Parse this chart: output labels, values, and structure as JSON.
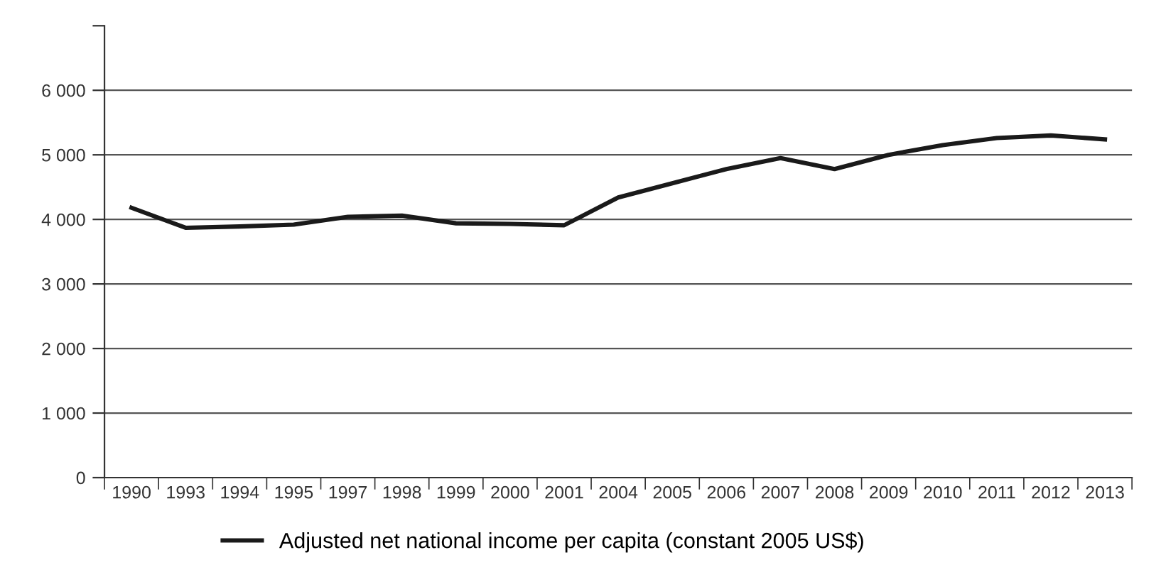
{
  "chart_data": {
    "type": "line",
    "categories": [
      "1990",
      "1993",
      "1994",
      "1995",
      "1997",
      "1998",
      "1999",
      "2000",
      "2001",
      "2004",
      "2005",
      "2006",
      "2007",
      "2008",
      "2009",
      "2010",
      "2011",
      "2012",
      "2013"
    ],
    "series": [
      {
        "name": "Adjusted net national income per capita (constant 2005 US$)",
        "color": "#1a1a1a",
        "values": [
          4180,
          3870,
          3890,
          3920,
          4040,
          4060,
          3940,
          3930,
          3910,
          4340,
          4560,
          4780,
          4950,
          4780,
          5000,
          5150,
          5260,
          5300,
          5240
        ]
      }
    ],
    "ylim": [
      0,
      7000
    ],
    "yticks": [
      {
        "value": 0,
        "label": "0"
      },
      {
        "value": 1000,
        "label": "1 000"
      },
      {
        "value": 2000,
        "label": "2 000"
      },
      {
        "value": 3000,
        "label": "3 000"
      },
      {
        "value": 4000,
        "label": "4 000"
      },
      {
        "value": 5000,
        "label": "5 000"
      },
      {
        "value": 6000,
        "label": "6 000"
      },
      {
        "value": 7000,
        "label": null
      }
    ],
    "grid": "y",
    "legend": "bottom left",
    "marker": "none",
    "line_style": "solid"
  }
}
